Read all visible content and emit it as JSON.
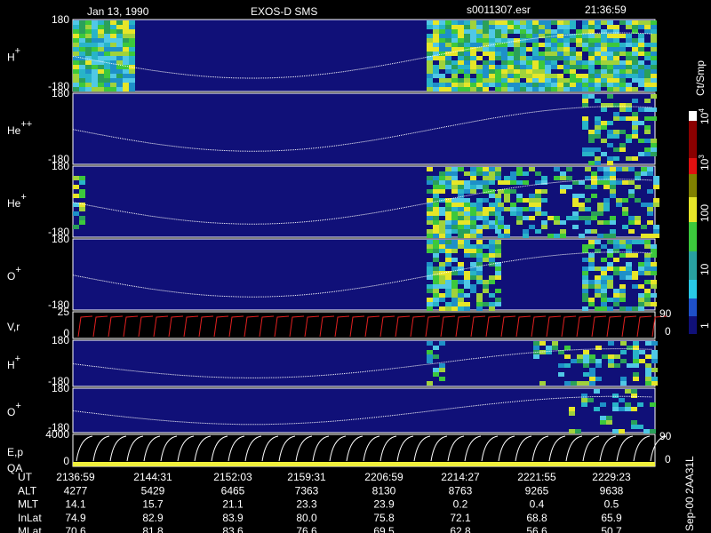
{
  "header": {
    "date": "Jan 13, 1990",
    "instrument": "EXOS-D SMS",
    "file": "s0011307.esr",
    "time": "21:36:59"
  },
  "panels": [
    {
      "base": "H",
      "sup": "+",
      "top": "180",
      "bottom": "-180"
    },
    {
      "base": "He",
      "sup": "++",
      "top": "180",
      "bottom": "-180"
    },
    {
      "base": "He",
      "sup": "+",
      "top": "180",
      "bottom": "-180"
    },
    {
      "base": "O",
      "sup": "+",
      "top": "180",
      "bottom": "-180"
    },
    {
      "base": "V,r",
      "top": "25",
      "bottom": "0",
      "right_top": "90",
      "right_bottom": "0"
    },
    {
      "base": "H",
      "sup": "+",
      "top": "180",
      "bottom": "-180"
    },
    {
      "base": "O",
      "sup": "+",
      "top": "180",
      "bottom": "-180"
    },
    {
      "base": "E,p",
      "base2": "QA",
      "top": "4000",
      "bottom": "0",
      "right_top": "90",
      "right_bottom": "0"
    }
  ],
  "colorbar": {
    "unit": "Ct/Smp",
    "labels": [
      {
        "base": "10",
        "sup": "4"
      },
      {
        "base": "10",
        "sup": "3"
      },
      {
        "base": "100"
      },
      {
        "base": "10"
      },
      {
        "base": "1"
      }
    ]
  },
  "footer_id": "Sep-00  2AA31L",
  "table": {
    "rows": [
      [
        "UT",
        "2136:59",
        "2144:31",
        "2152:03",
        "2159:31",
        "2206:59",
        "2214:27",
        "2221:55",
        "2229:23"
      ],
      [
        "ALT",
        "4277",
        "5429",
        "6465",
        "7363",
        "8130",
        "8763",
        "9265",
        "9638"
      ],
      [
        "MLT",
        "14.1",
        "15.7",
        "21.1",
        "23.3",
        "23.9",
        "0.2",
        "0.4",
        "0.5"
      ],
      [
        "InLat",
        "74.9",
        "82.9",
        "83.9",
        "80.0",
        "75.8",
        "72.1",
        "68.8",
        "65.9"
      ],
      [
        "MLat",
        "70.6",
        "81.8",
        "83.6",
        "76.6",
        "69.5",
        "62.8",
        "56.6",
        "50.7"
      ]
    ]
  }
}
